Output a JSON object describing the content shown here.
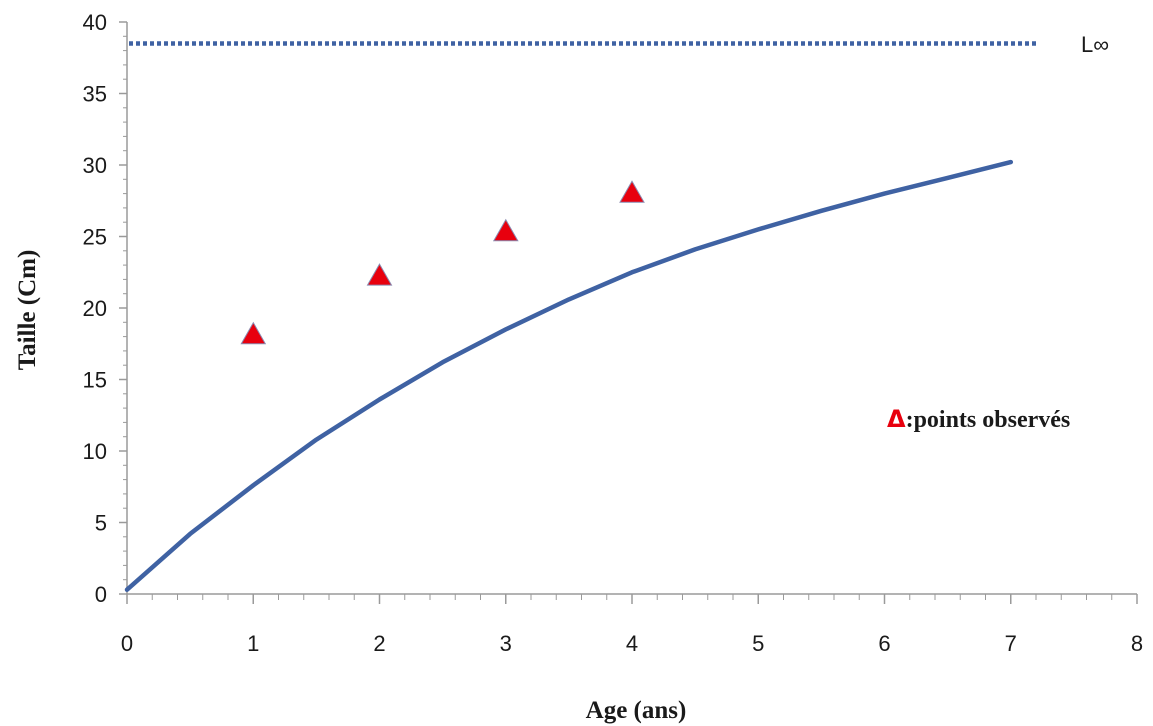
{
  "chart_data": {
    "type": "line",
    "title": "",
    "xlabel": "Age (ans)",
    "ylabel": "Taille (Cm)",
    "xlim": [
      0,
      8
    ],
    "ylim": [
      0,
      40
    ],
    "x_ticks": [
      "0",
      "1",
      "2",
      "3",
      "4",
      "5",
      "6",
      "7",
      "8"
    ],
    "y_ticks": [
      "0",
      "5",
      "10",
      "15",
      "20",
      "25",
      "30",
      "35",
      "40"
    ],
    "grid": false,
    "series": [
      {
        "kind": "line",
        "x": [
          0,
          0.5,
          1,
          1.5,
          2,
          2.5,
          3,
          3.5,
          4,
          4.5,
          5,
          5.5,
          6,
          6.5,
          7
        ],
        "y": [
          0.3,
          4.2,
          7.6,
          10.8,
          13.6,
          16.2,
          18.5,
          20.6,
          22.5,
          24.1,
          25.5,
          26.8,
          28.0,
          29.1,
          30.2
        ],
        "color": "#3f62a3"
      },
      {
        "kind": "scatter",
        "marker": "triangle",
        "x": [
          1,
          2,
          3,
          4
        ],
        "y": [
          18.2,
          22.3,
          25.4,
          28.1
        ],
        "color": "#e8000e"
      }
    ],
    "reference_line": {
      "y": 38.5,
      "label": "L∞",
      "style": "dotted",
      "color": "#3f62a3"
    },
    "annotation": {
      "symbol": "Δ",
      "text": ":points observés",
      "symbol_color": "#e8000e"
    }
  }
}
